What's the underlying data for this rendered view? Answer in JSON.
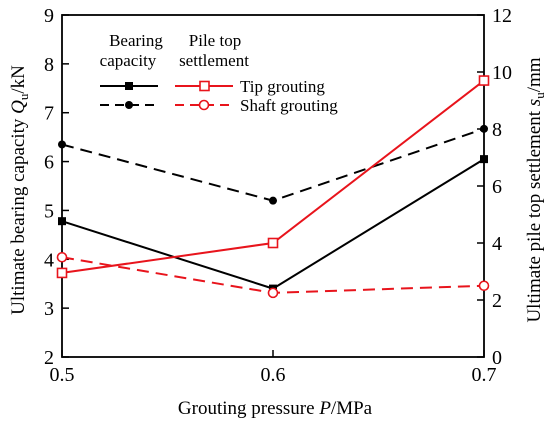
{
  "chart_data": {
    "type": "line",
    "x": [
      0.5,
      0.6,
      0.7
    ],
    "xlim": [
      0.5,
      0.7
    ],
    "xticks": [
      0.5,
      0.6,
      0.7
    ],
    "xlabel": {
      "prefix": "Grouting pressure ",
      "var": "P",
      "unit": "/MPa"
    },
    "ylabel_left": {
      "prefix": "Ultimate bearing capacity ",
      "var": "Q",
      "sub": "u",
      "unit": "/kN"
    },
    "ylabel_right": {
      "prefix": "Ultimate pile top settlement ",
      "var": "s",
      "sub": "u",
      "unit": "/mm"
    },
    "ylim_left": [
      2,
      9
    ],
    "yticks_left": [
      2,
      3,
      4,
      5,
      6,
      7,
      8,
      9
    ],
    "ylim_right": [
      0,
      12
    ],
    "yticks_right": [
      0,
      2,
      4,
      6,
      8,
      10,
      12
    ],
    "legend": {
      "col1_header": [
        "Bearing",
        "capacity"
      ],
      "col2_header": [
        "Pile top",
        "settlement"
      ],
      "rows": [
        "Tip grouting",
        "Shaft grouting"
      ]
    },
    "series": [
      {
        "name": "Tip grouting",
        "group": "Bearing capacity",
        "axis": "left",
        "color": "#000000",
        "dash": "solid",
        "marker": "square-filled",
        "values": [
          4.78,
          3.4,
          6.05
        ]
      },
      {
        "name": "Shaft grouting",
        "group": "Bearing capacity",
        "axis": "left",
        "color": "#000000",
        "dash": "dashed",
        "marker": "circle-filled",
        "values": [
          6.35,
          5.2,
          6.67
        ]
      },
      {
        "name": "Tip grouting",
        "group": "Pile top settlement",
        "axis": "right",
        "color": "#e8141c",
        "dash": "solid",
        "marker": "square-open",
        "values": [
          2.95,
          4.0,
          9.7
        ]
      },
      {
        "name": "Shaft grouting",
        "group": "Pile top settlement",
        "axis": "right",
        "color": "#e8141c",
        "dash": "dashed",
        "marker": "circle-open",
        "values": [
          3.5,
          2.25,
          2.5
        ]
      }
    ]
  }
}
